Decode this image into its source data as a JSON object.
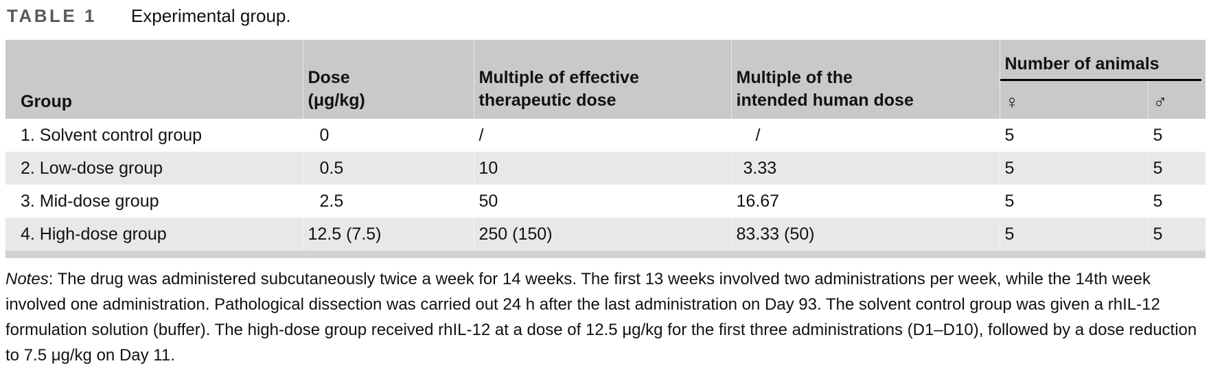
{
  "title": {
    "label": "TABLE 1",
    "caption": "Experimental group."
  },
  "table": {
    "columns": {
      "group": "Group",
      "dose_line1": "Dose",
      "dose_line2": "(μg/kg)",
      "mult_effective_line1": "Multiple of effective",
      "mult_effective_line2": "therapeutic dose",
      "mult_human_line1": "Multiple of the",
      "mult_human_line2": "intended human dose",
      "number_of_animals": "Number of animals",
      "female_symbol": "♀",
      "male_symbol": "♂"
    },
    "rows": [
      {
        "group": "1. Solvent control group",
        "dose": "0",
        "mult_effective": "/",
        "mult_human": "/",
        "female": "5",
        "male": "5"
      },
      {
        "group": "2. Low-dose group",
        "dose": "0.5",
        "mult_effective": "10",
        "mult_human": "3.33",
        "female": "5",
        "male": "5"
      },
      {
        "group": "3. Mid-dose group",
        "dose": "2.5",
        "mult_effective": "50",
        "mult_human": "16.67",
        "female": "5",
        "male": "5"
      },
      {
        "group": "4. High-dose group",
        "dose": "12.5 (7.5)",
        "mult_effective": "250 (150)",
        "mult_human": "83.33 (50)",
        "female": "5",
        "male": "5"
      }
    ]
  },
  "notes": {
    "label": "Notes",
    "text": ": The drug was administered subcutaneously twice a week for 14 weeks. The first 13 weeks involved two administrations per week, while the 14th week involved one administration. Pathological dissection was carried out 24 h after the last administration on Day 93. The solvent control group was given a rhIL-12 formulation solution (buffer). The high-dose group received rhIL-12 at a dose of 12.5 μg/kg for the first three administrations (D1–D10), followed by a dose reduction to 7.5 μg/kg on Day 11."
  },
  "colors": {
    "header_bg": "#c9c9c9",
    "row_alt_bg": "#e8e8e6",
    "bottom_strip": "#d2d2d0",
    "title_label_gray": "#595959",
    "text": "#121212",
    "spanner_rule": "#000000"
  }
}
